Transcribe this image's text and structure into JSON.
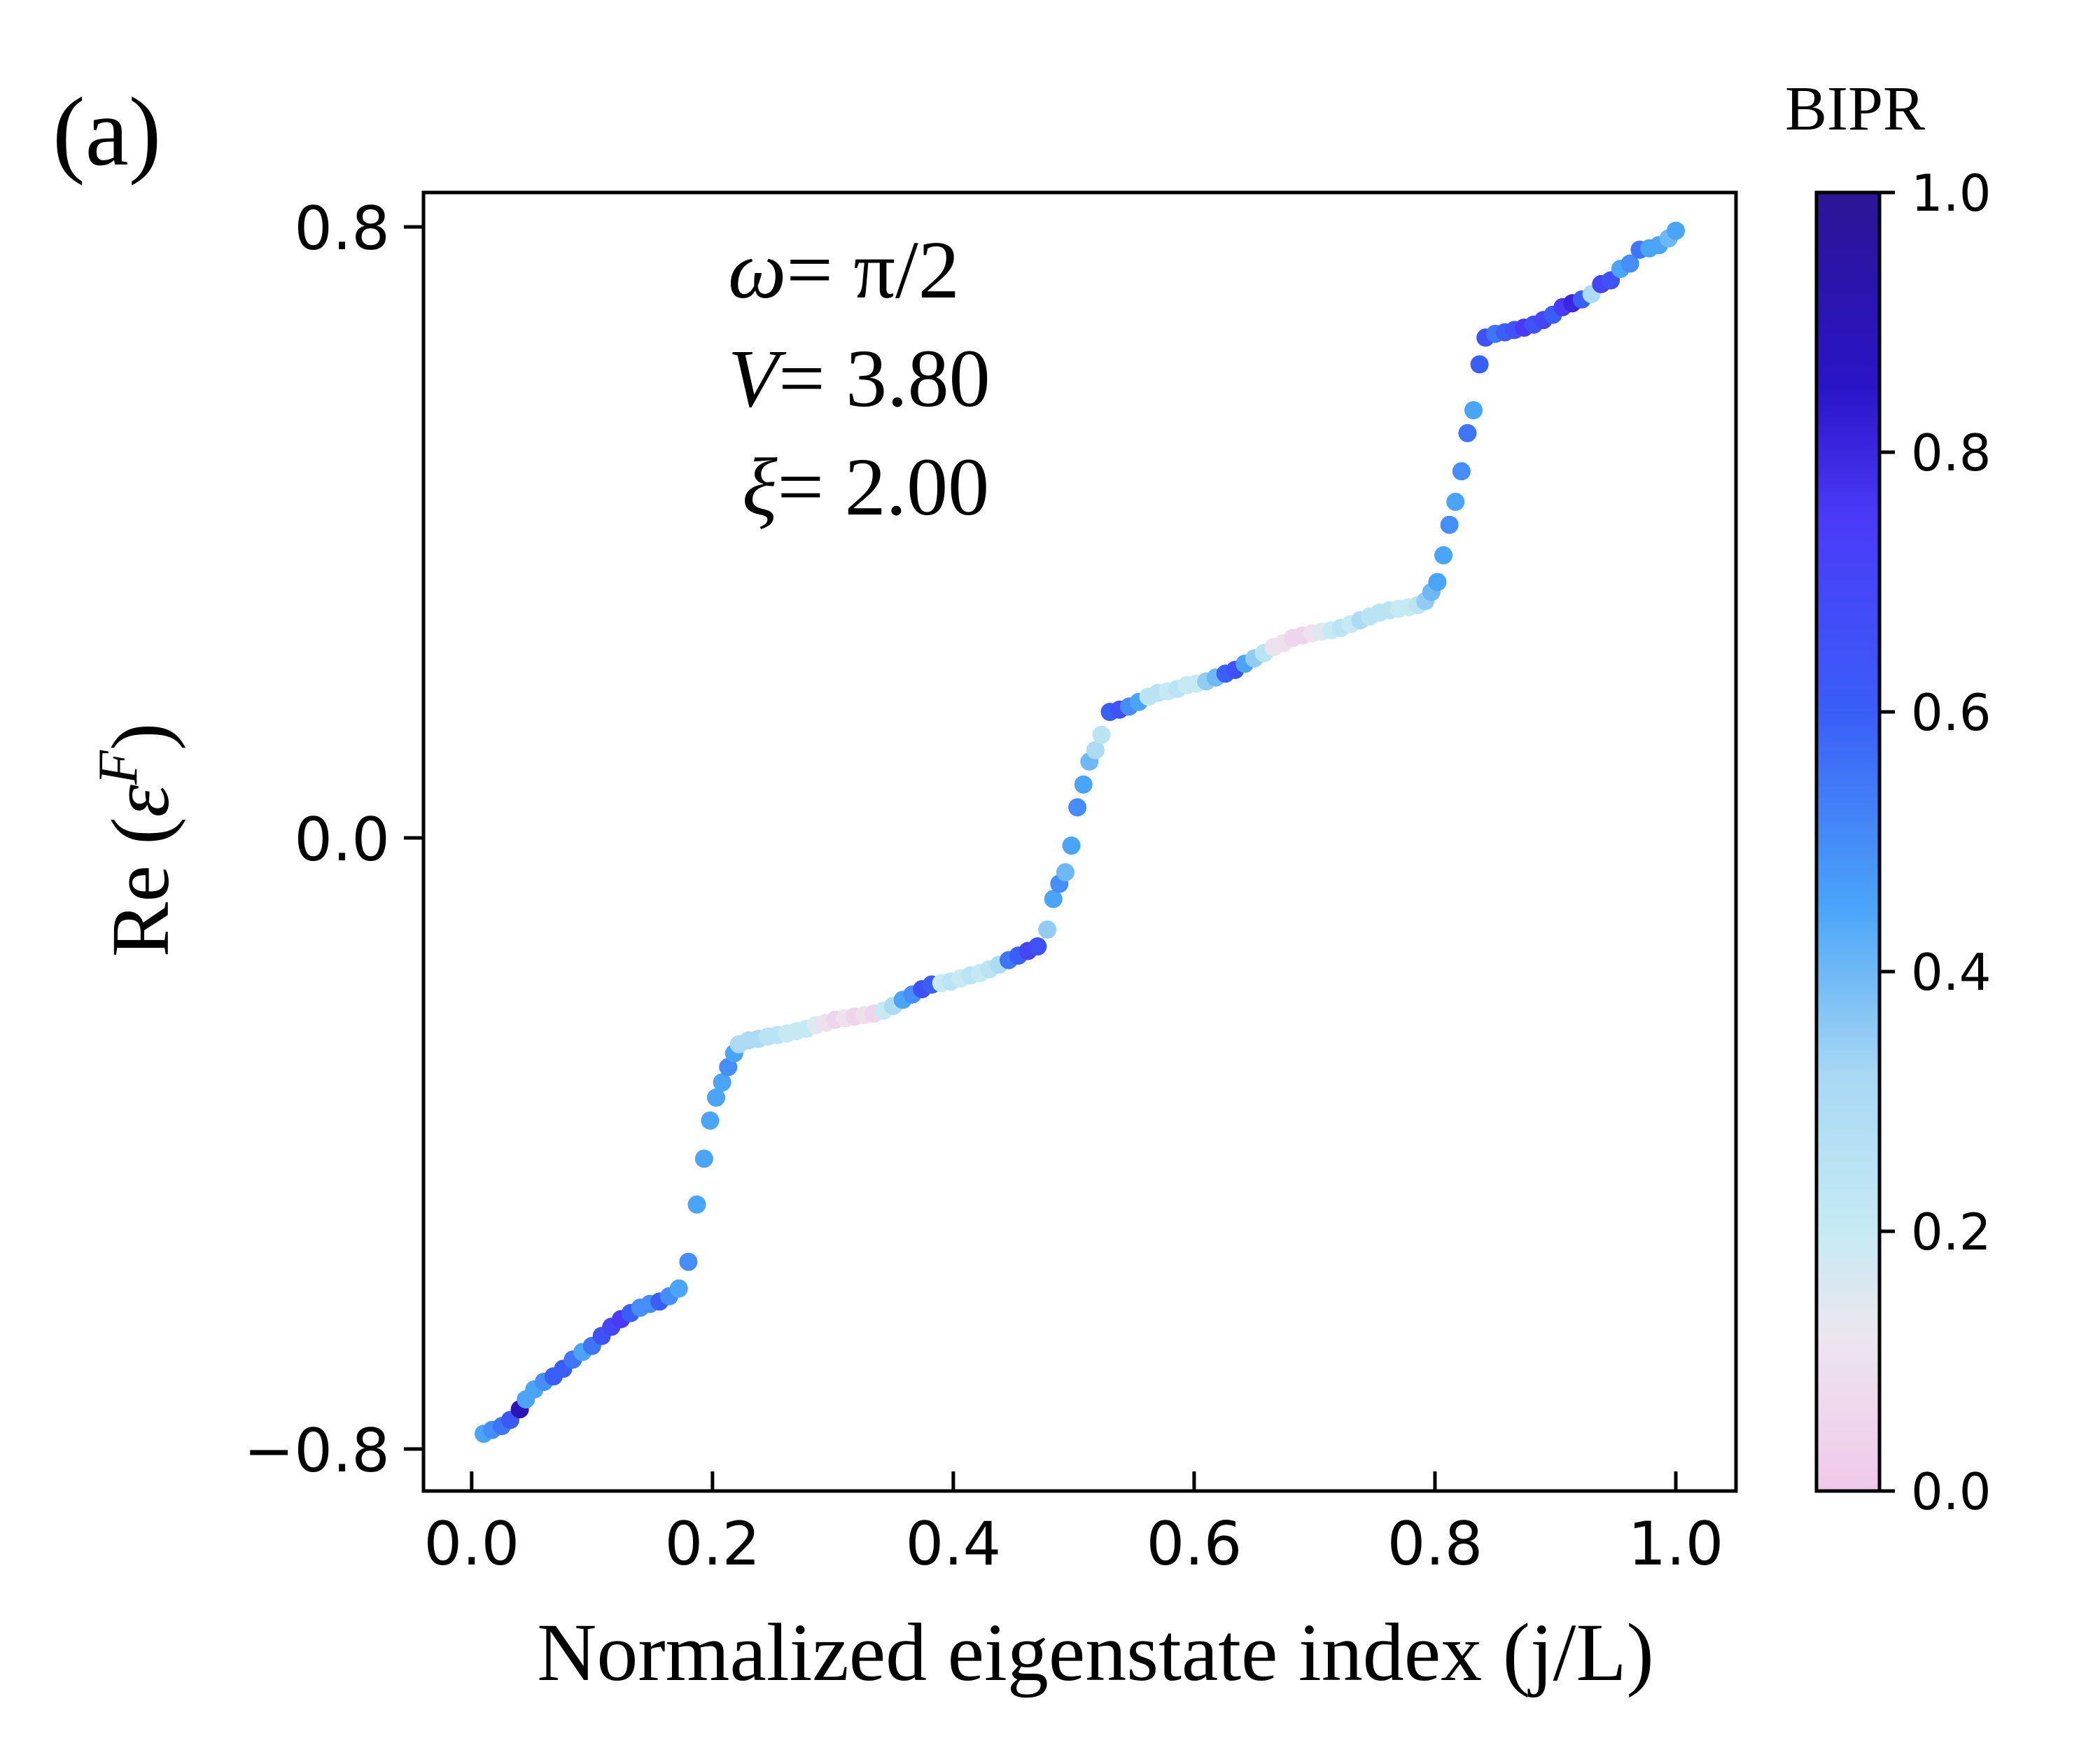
{
  "panel_label": "(a)",
  "chart_data": {
    "type": "scatter",
    "xlabel": "Normalized eigenstate index (j/L)",
    "ylabel_prefix": "Re (",
    "ylabel_symbol": "ε",
    "ylabel_superscript": "F",
    "ylabel_suffix": ")",
    "xlim": [
      -0.04,
      1.05
    ],
    "ylim": [
      -0.855,
      0.845
    ],
    "xticks": [
      0.0,
      0.2,
      0.4,
      0.6,
      0.8,
      1.0
    ],
    "xtick_labels": [
      "0.0",
      "0.2",
      "0.4",
      "0.6",
      "0.8",
      "1.0"
    ],
    "yticks": [
      -0.8,
      0.0,
      0.8
    ],
    "ytick_labels": [
      "−0.8",
      "0.0",
      "0.8"
    ],
    "annotations": {
      "omega_symbol": "ω",
      "omega_value": "= π/2",
      "V_symbol": "V",
      "V_value": "= 3.80",
      "xi_symbol": "ξ",
      "xi_value": "= 2.00"
    },
    "colorbar": {
      "label": "BIPR",
      "range": [
        0.0,
        1.0
      ],
      "ticks": [
        0.0,
        0.2,
        0.4,
        0.6,
        0.8,
        1.0
      ],
      "tick_labels": [
        "0.0",
        "0.2",
        "0.4",
        "0.6",
        "0.8",
        "1.0"
      ],
      "colormap_stops": [
        {
          "v": 0.0,
          "color": "#f0c8ea"
        },
        {
          "v": 0.12,
          "color": "#ece6ee"
        },
        {
          "v": 0.2,
          "color": "#c6eaf4"
        },
        {
          "v": 0.32,
          "color": "#a8d8f4"
        },
        {
          "v": 0.45,
          "color": "#4aa4f8"
        },
        {
          "v": 0.6,
          "color": "#3a5ef8"
        },
        {
          "v": 0.75,
          "color": "#4a3af8"
        },
        {
          "v": 0.85,
          "color": "#2a14c8"
        },
        {
          "v": 1.0,
          "color": "#2c1494"
        }
      ]
    },
    "series": [
      {
        "x": [
          0.01,
          0.017,
          0.025,
          0.032,
          0.04,
          0.045,
          0.052,
          0.06,
          0.068,
          0.076,
          0.084,
          0.092,
          0.1,
          0.108,
          0.116,
          0.124,
          0.132,
          0.14,
          0.148,
          0.156,
          0.164,
          0.172,
          0.18,
          0.187,
          0.193,
          0.198,
          0.203,
          0.208,
          0.213,
          0.218,
          0.222,
          0.23,
          0.238,
          0.246,
          0.254,
          0.262,
          0.27,
          0.278,
          0.286,
          0.294,
          0.302,
          0.31,
          0.318,
          0.326,
          0.334,
          0.342,
          0.35,
          0.358,
          0.366,
          0.374,
          0.382,
          0.39,
          0.398,
          0.406,
          0.414,
          0.422,
          0.43,
          0.438,
          0.446,
          0.454,
          0.462,
          0.47,
          0.478,
          0.483,
          0.488,
          0.493,
          0.498,
          0.503,
          0.508,
          0.513,
          0.518,
          0.523,
          0.53,
          0.538,
          0.546,
          0.554,
          0.562,
          0.57,
          0.578,
          0.586,
          0.594,
          0.602,
          0.61,
          0.618,
          0.626,
          0.634,
          0.642,
          0.65,
          0.658,
          0.666,
          0.674,
          0.682,
          0.69,
          0.698,
          0.706,
          0.714,
          0.722,
          0.73,
          0.738,
          0.746,
          0.754,
          0.762,
          0.77,
          0.778,
          0.786,
          0.792,
          0.797,
          0.802,
          0.807,
          0.812,
          0.817,
          0.822,
          0.827,
          0.832,
          0.837,
          0.842,
          0.85,
          0.858,
          0.866,
          0.874,
          0.882,
          0.89,
          0.898,
          0.906,
          0.914,
          0.922,
          0.93,
          0.938,
          0.946,
          0.954,
          0.962,
          0.97,
          0.978,
          0.986,
          0.994,
          1.0
        ],
        "y": [
          -0.78,
          -0.775,
          -0.77,
          -0.762,
          -0.748,
          -0.735,
          -0.722,
          -0.712,
          -0.705,
          -0.695,
          -0.683,
          -0.673,
          -0.665,
          -0.652,
          -0.64,
          -0.63,
          -0.622,
          -0.615,
          -0.61,
          -0.607,
          -0.6,
          -0.59,
          -0.555,
          -0.48,
          -0.42,
          -0.37,
          -0.34,
          -0.32,
          -0.3,
          -0.282,
          -0.27,
          -0.265,
          -0.263,
          -0.26,
          -0.258,
          -0.256,
          -0.253,
          -0.25,
          -0.245,
          -0.242,
          -0.238,
          -0.236,
          -0.234,
          -0.232,
          -0.23,
          -0.226,
          -0.22,
          -0.212,
          -0.205,
          -0.198,
          -0.192,
          -0.19,
          -0.188,
          -0.184,
          -0.18,
          -0.177,
          -0.172,
          -0.166,
          -0.16,
          -0.154,
          -0.148,
          -0.142,
          -0.12,
          -0.08,
          -0.06,
          -0.045,
          -0.01,
          0.04,
          0.07,
          0.1,
          0.115,
          0.135,
          0.165,
          0.168,
          0.172,
          0.178,
          0.185,
          0.19,
          0.192,
          0.195,
          0.2,
          0.202,
          0.205,
          0.21,
          0.215,
          0.22,
          0.228,
          0.235,
          0.242,
          0.25,
          0.255,
          0.262,
          0.265,
          0.268,
          0.27,
          0.272,
          0.275,
          0.28,
          0.285,
          0.29,
          0.295,
          0.298,
          0.3,
          0.302,
          0.305,
          0.31,
          0.322,
          0.335,
          0.37,
          0.41,
          0.44,
          0.48,
          0.53,
          0.56,
          0.62,
          0.655,
          0.66,
          0.662,
          0.665,
          0.668,
          0.672,
          0.678,
          0.685,
          0.695,
          0.7,
          0.705,
          0.712,
          0.725,
          0.73,
          0.745,
          0.752,
          0.77,
          0.772,
          0.776,
          0.785,
          0.795
        ],
        "bipr": [
          0.45,
          0.5,
          0.55,
          0.62,
          0.9,
          0.45,
          0.45,
          0.5,
          0.6,
          0.6,
          0.55,
          0.45,
          0.55,
          0.65,
          0.7,
          0.75,
          0.6,
          0.5,
          0.5,
          0.6,
          0.5,
          0.45,
          0.5,
          0.45,
          0.45,
          0.45,
          0.45,
          0.45,
          0.5,
          0.45,
          0.3,
          0.3,
          0.3,
          0.25,
          0.25,
          0.2,
          0.2,
          0.2,
          0.15,
          0.1,
          0.05,
          0.1,
          0.05,
          0.1,
          0.05,
          0.2,
          0.3,
          0.45,
          0.5,
          0.65,
          0.6,
          0.2,
          0.25,
          0.2,
          0.25,
          0.2,
          0.25,
          0.3,
          0.55,
          0.6,
          0.7,
          0.65,
          0.35,
          0.45,
          0.5,
          0.4,
          0.45,
          0.5,
          0.45,
          0.4,
          0.3,
          0.25,
          0.6,
          0.65,
          0.5,
          0.45,
          0.25,
          0.25,
          0.2,
          0.25,
          0.2,
          0.2,
          0.35,
          0.4,
          0.6,
          0.65,
          0.45,
          0.35,
          0.25,
          0.1,
          0.1,
          0.05,
          0.05,
          0.1,
          0.15,
          0.2,
          0.25,
          0.2,
          0.3,
          0.25,
          0.25,
          0.25,
          0.2,
          0.2,
          0.25,
          0.35,
          0.4,
          0.45,
          0.45,
          0.5,
          0.45,
          0.5,
          0.55,
          0.45,
          0.6,
          0.65,
          0.55,
          0.6,
          0.65,
          0.75,
          0.65,
          0.7,
          0.6,
          0.75,
          0.8,
          0.6,
          0.3,
          0.7,
          0.65,
          0.45,
          0.5,
          0.55,
          0.45,
          0.45,
          0.4,
          0.45
        ]
      }
    ]
  }
}
